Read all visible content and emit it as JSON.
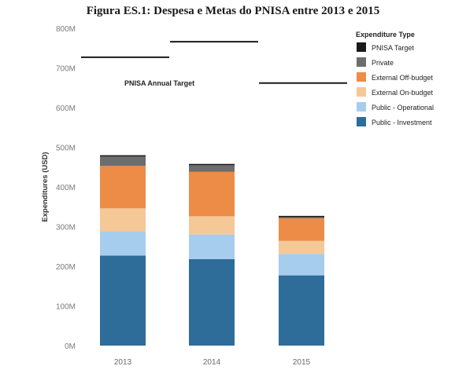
{
  "chart_data": {
    "type": "bar",
    "stacked": true,
    "title": "Figura ES.1: Despesa e Metas do PNISA entre 2013 e 2015",
    "xlabel": "",
    "ylabel": "Expenditures (USD)",
    "categories": [
      "2013",
      "2014",
      "2015"
    ],
    "ylim": [
      0,
      800000000
    ],
    "yticks": [
      0,
      100000000,
      200000000,
      300000000,
      400000000,
      500000000,
      600000000,
      700000000,
      800000000
    ],
    "ytick_labels": [
      "0M",
      "100M",
      "200M",
      "300M",
      "400M",
      "500M",
      "600M",
      "700M",
      "800M"
    ],
    "grid": false,
    "legend_title": "Expenditure Type",
    "legend_position": "top-right",
    "series": [
      {
        "name": "Public - Investment",
        "color": "#2e6c99",
        "values": [
          227000000,
          218000000,
          177000000
        ]
      },
      {
        "name": "Public - Operational",
        "color": "#a6cdee",
        "values": [
          61000000,
          62000000,
          54000000
        ]
      },
      {
        "name": "External On-budget",
        "color": "#f5c898",
        "values": [
          58000000,
          46000000,
          33000000
        ]
      },
      {
        "name": "External Off-budget",
        "color": "#ec8c47",
        "values": [
          107000000,
          112000000,
          57000000
        ]
      },
      {
        "name": "Private",
        "color": "#6d6d6d",
        "values": [
          25000000,
          18000000,
          4000000
        ]
      }
    ],
    "legend_items": [
      {
        "name": "PNISA Target",
        "color": "#1a1a1a"
      },
      {
        "name": "Private",
        "color": "#6d6d6d"
      },
      {
        "name": "External Off-budget",
        "color": "#ec8c47"
      },
      {
        "name": "External On-budget",
        "color": "#f5c898"
      },
      {
        "name": "Public - Operational",
        "color": "#a6cdee"
      },
      {
        "name": "Public - Investment",
        "color": "#2e6c99"
      }
    ],
    "targets": {
      "name": "PNISA Target",
      "color": "#1a1a1a",
      "values": [
        727000000,
        766000000,
        662000000
      ]
    },
    "annotation": "PNISA Annual Target"
  }
}
